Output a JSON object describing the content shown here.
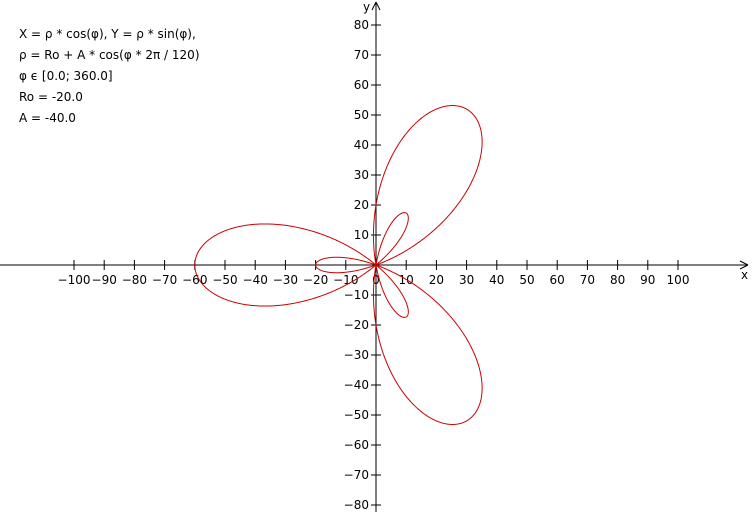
{
  "formulas": [
    "X = ρ * cos(φ), Y = ρ * sin(φ),",
    "ρ = Ro + A * cos(φ * 2π / 120)",
    "φ ϵ [0.0; 360.0]",
    "Ro = -20.0",
    "A = -40.0"
  ],
  "chart_data": {
    "type": "line",
    "title": "",
    "xlabel": "x",
    "ylabel": "y",
    "xlim": [
      -125,
      125
    ],
    "ylim": [
      -80,
      80
    ],
    "x_ticks": [
      -100,
      -90,
      -80,
      -70,
      -60,
      -50,
      -40,
      -30,
      -20,
      -10,
      0,
      10,
      20,
      30,
      40,
      50,
      60,
      70,
      80,
      90,
      100
    ],
    "x_tick_labels": [
      "-100",
      "-90",
      "-80",
      "-70",
      "-60",
      "-50",
      "-40",
      "-30",
      "-20",
      "-10",
      "0",
      "10",
      "20",
      "30",
      "40",
      "50",
      "60",
      "70",
      "80",
      "90",
      "100"
    ],
    "y_ticks": [
      -80,
      -70,
      -60,
      -50,
      -40,
      -30,
      -20,
      -10,
      10,
      20,
      30,
      40,
      50,
      60,
      70,
      80
    ],
    "y_tick_labels": [
      "-80",
      "-70",
      "-60",
      "-50",
      "-40",
      "-30",
      "-20",
      "-10",
      "10",
      "20",
      "30",
      "40",
      "50",
      "60",
      "70",
      "80"
    ],
    "curve": {
      "kind": "polar",
      "Ro": -20.0,
      "A": -40.0,
      "phi_range_deg": [
        0,
        360
      ],
      "period_deg": 120,
      "color": "#cc0000"
    },
    "grid": false
  }
}
